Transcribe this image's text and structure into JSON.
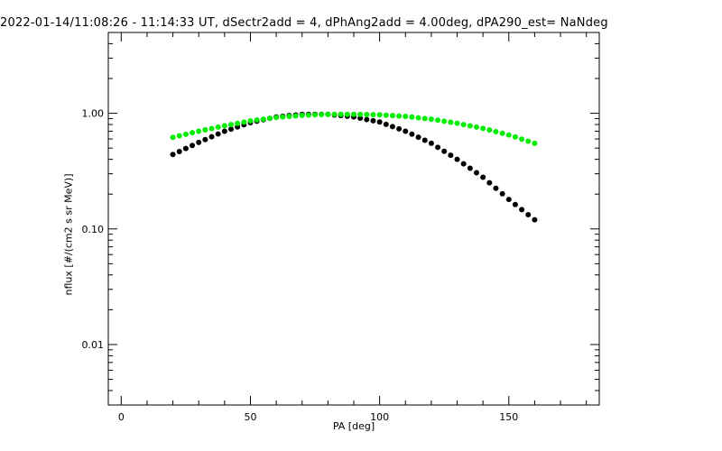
{
  "chart_data": {
    "type": "scatter",
    "title": "2022-01-14/11:08:26 - 11:14:33 UT, dSectr2add = 4, dPhAng2add = 4.00deg, dPA290_est=    NaNdeg",
    "xlabel": "PA [deg]",
    "ylabel": "nflux [#/(cm2 s sr MeV)]",
    "xlim": [
      -5,
      185
    ],
    "ylim": [
      0.003,
      5
    ],
    "yscale": "log",
    "x_ticks": [
      0,
      50,
      100,
      150
    ],
    "x_tick_labels": [
      "0",
      "50",
      "100",
      "150"
    ],
    "y_ticks": [
      0.01,
      0.1,
      1.0
    ],
    "y_tick_labels": [
      "0.01",
      "0.10",
      "1.00"
    ],
    "grid": false,
    "series": [
      {
        "color": "#000000",
        "x": [
          20,
          30,
          40,
          50,
          60,
          70,
          80,
          90,
          100,
          110,
          120,
          130,
          140,
          150,
          160
        ],
        "y": [
          0.44,
          0.56,
          0.7,
          0.83,
          0.93,
          0.98,
          0.98,
          0.93,
          0.84,
          0.7,
          0.55,
          0.4,
          0.28,
          0.18,
          0.12
        ]
      },
      {
        "color": "#00ee00",
        "x": [
          20,
          30,
          40,
          50,
          60,
          70,
          80,
          90,
          100,
          110,
          120,
          130,
          140,
          150,
          160
        ],
        "y": [
          0.62,
          0.7,
          0.78,
          0.86,
          0.92,
          0.96,
          0.98,
          0.98,
          0.97,
          0.94,
          0.89,
          0.82,
          0.74,
          0.65,
          0.55
        ]
      }
    ]
  }
}
